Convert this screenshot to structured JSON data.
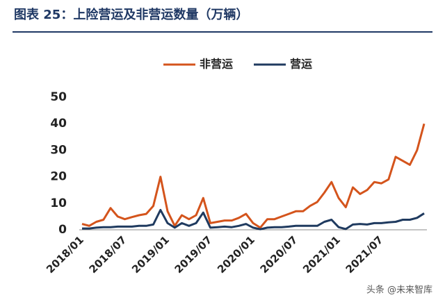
{
  "chart_data": {
    "type": "line",
    "title": "图表 25：上险营运及非营运数量（万辆）",
    "watermark": "头条 @未来智库",
    "categories": [
      "2018/01",
      null,
      null,
      null,
      null,
      null,
      "2018/07",
      null,
      null,
      null,
      null,
      null,
      "2019/01",
      null,
      null,
      null,
      null,
      null,
      "2019/07",
      null,
      null,
      null,
      null,
      null,
      "2020/01",
      null,
      null,
      null,
      null,
      null,
      "2020/07",
      null,
      null,
      null,
      null,
      null,
      "2021/01",
      null,
      null,
      null,
      null,
      null,
      "2021/07",
      null,
      null,
      null,
      null,
      null,
      null
    ],
    "series": [
      {
        "name": "非营运",
        "color": "#d4541c",
        "values": [
          2.2,
          1.5,
          3,
          3.8,
          8.2,
          5,
          4,
          4.8,
          5.5,
          6,
          9,
          20,
          7,
          1.5,
          5.5,
          4,
          5.5,
          12,
          2.5,
          3,
          3.5,
          3.5,
          4.5,
          6,
          2.5,
          0.8,
          4,
          4,
          5,
          6,
          7,
          7,
          9,
          10.5,
          14,
          18,
          12,
          8.5,
          16,
          13.5,
          15,
          18,
          17.5,
          19,
          27.5,
          26,
          24.5,
          30,
          40
        ]
      },
      {
        "name": "营运",
        "color": "#1f3a5f",
        "values": [
          0.5,
          0.5,
          0.8,
          1,
          1,
          1.2,
          1.2,
          1.2,
          1.5,
          1.5,
          2,
          7.5,
          2.5,
          0.8,
          2.5,
          1.5,
          2.5,
          6.5,
          0.8,
          1,
          1.2,
          1,
          1.5,
          2.2,
          0.8,
          0.2,
          0.8,
          1,
          1,
          1.2,
          1.5,
          1.5,
          1.5,
          1.5,
          3,
          3.8,
          1,
          0.3,
          2,
          2.2,
          2,
          2.5,
          2.5,
          2.8,
          3,
          3.8,
          3.8,
          4.5,
          6.2
        ]
      }
    ],
    "ylim": [
      0,
      50
    ],
    "yticks": [
      0,
      10,
      20,
      30,
      40,
      50
    ],
    "grid": false,
    "legend": "top"
  }
}
